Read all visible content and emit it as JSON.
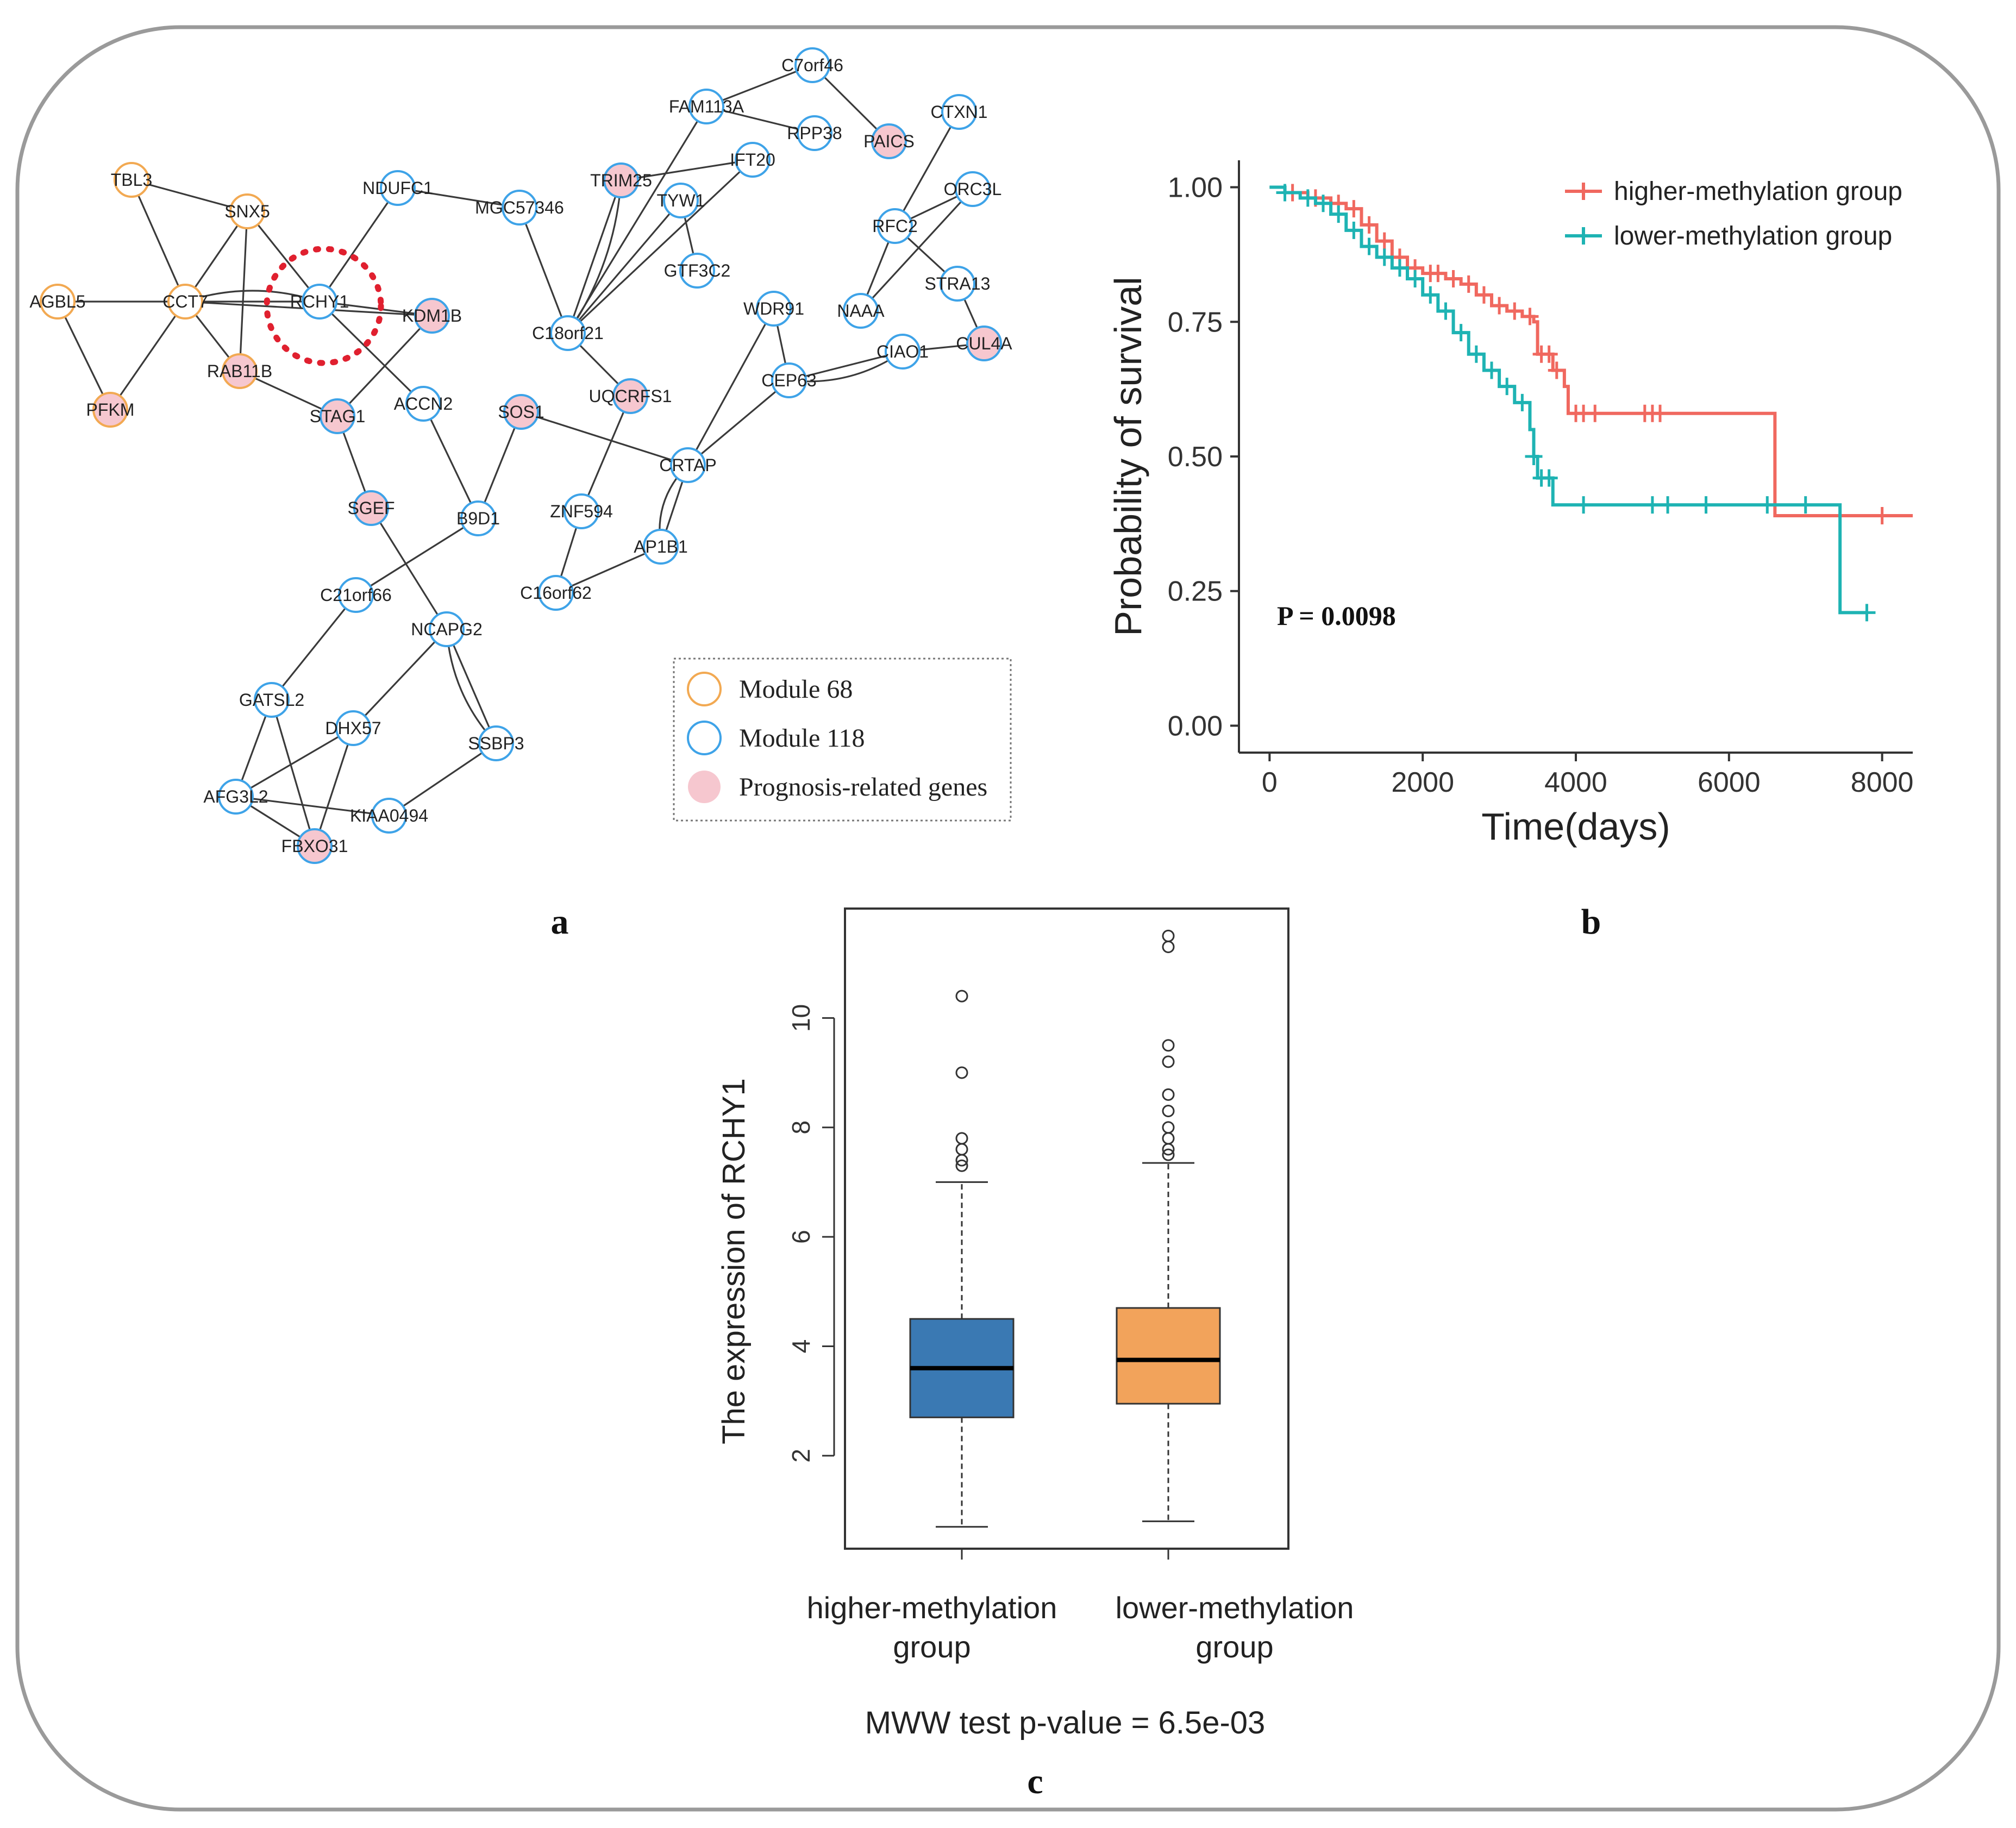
{
  "panel_labels": {
    "a": "a",
    "b": "b",
    "c": "c"
  },
  "colors": {
    "module68": "#f2a952",
    "module118": "#3ea3e8",
    "prognosis_fill": "#f6c7cf",
    "higher": "#f0685f",
    "lower": "#1eb3b3",
    "box_higher": "#3a79b3",
    "box_lower": "#f2a35b",
    "highlight": "#e0202f"
  },
  "network": {
    "highlight_node": "RCHY1",
    "legend": {
      "module68": "Module 68",
      "module118": "Module 118",
      "prognosis": "Prognosis-related genes"
    },
    "nodes": [
      {
        "id": "TBL3",
        "module": "68",
        "prognosis": false
      },
      {
        "id": "SNX5",
        "module": "68",
        "prognosis": false
      },
      {
        "id": "AGBL5",
        "module": "68",
        "prognosis": false
      },
      {
        "id": "CCT7",
        "module": "68",
        "prognosis": false
      },
      {
        "id": "RAB11B",
        "module": "68",
        "prognosis": true
      },
      {
        "id": "PFKM",
        "module": "68",
        "prognosis": true
      },
      {
        "id": "RCHY1",
        "module": "118",
        "prognosis": false
      },
      {
        "id": "NDUFC1",
        "module": "118",
        "prognosis": false
      },
      {
        "id": "KDM1B",
        "module": "118",
        "prognosis": true
      },
      {
        "id": "STAG1",
        "module": "118",
        "prognosis": true
      },
      {
        "id": "ACCN2",
        "module": "118",
        "prognosis": false
      },
      {
        "id": "SGEF",
        "module": "118",
        "prognosis": true
      },
      {
        "id": "B9D1",
        "module": "118",
        "prognosis": false
      },
      {
        "id": "SOS1",
        "module": "118",
        "prognosis": true
      },
      {
        "id": "MGC57346",
        "module": "118",
        "prognosis": false
      },
      {
        "id": "TRIM25",
        "module": "118",
        "prognosis": true
      },
      {
        "id": "TYW1",
        "module": "118",
        "prognosis": false
      },
      {
        "id": "IFT20",
        "module": "118",
        "prognosis": false
      },
      {
        "id": "FAM113A",
        "module": "118",
        "prognosis": false
      },
      {
        "id": "C7orf46",
        "module": "118",
        "prognosis": false
      },
      {
        "id": "RPP38",
        "module": "118",
        "prognosis": false
      },
      {
        "id": "PAICS",
        "module": "118",
        "prognosis": true
      },
      {
        "id": "CTXN1",
        "module": "118",
        "prognosis": false
      },
      {
        "id": "ORC3L",
        "module": "118",
        "prognosis": false
      },
      {
        "id": "RFC2",
        "module": "118",
        "prognosis": false
      },
      {
        "id": "STRA13",
        "module": "118",
        "prognosis": false
      },
      {
        "id": "NAAA",
        "module": "118",
        "prognosis": false
      },
      {
        "id": "CUL4A",
        "module": "118",
        "prognosis": true
      },
      {
        "id": "GTF3C2",
        "module": "118",
        "prognosis": false
      },
      {
        "id": "C18orf21",
        "module": "118",
        "prognosis": false
      },
      {
        "id": "UQCRFS1",
        "module": "118",
        "prognosis": true
      },
      {
        "id": "WDR91",
        "module": "118",
        "prognosis": false
      },
      {
        "id": "CEP63",
        "module": "118",
        "prognosis": false
      },
      {
        "id": "CIAO1",
        "module": "118",
        "prognosis": false
      },
      {
        "id": "CRTAP",
        "module": "118",
        "prognosis": false
      },
      {
        "id": "ZNF594",
        "module": "118",
        "prognosis": false
      },
      {
        "id": "AP1B1",
        "module": "118",
        "prognosis": false
      },
      {
        "id": "C16orf62",
        "module": "118",
        "prognosis": false
      },
      {
        "id": "C21orf66",
        "module": "118",
        "prognosis": false
      },
      {
        "id": "NCAPG2",
        "module": "118",
        "prognosis": false
      },
      {
        "id": "GATSL2",
        "module": "118",
        "prognosis": false
      },
      {
        "id": "DHX57",
        "module": "118",
        "prognosis": false
      },
      {
        "id": "SSBP3",
        "module": "118",
        "prognosis": false
      },
      {
        "id": "AFG3L2",
        "module": "118",
        "prognosis": false
      },
      {
        "id": "KIAA0494",
        "module": "118",
        "prognosis": false
      },
      {
        "id": "FBXO31",
        "module": "118",
        "prognosis": true
      }
    ],
    "edges": [
      [
        "TBL3",
        "CCT7"
      ],
      [
        "TBL3",
        "SNX5"
      ],
      [
        "SNX5",
        "CCT7"
      ],
      [
        "SNX5",
        "RAB11B"
      ],
      [
        "SNX5",
        "RCHY1"
      ],
      [
        "AGBL5",
        "CCT7"
      ],
      [
        "AGBL5",
        "PFKM"
      ],
      [
        "CCT7",
        "PFKM"
      ],
      [
        "CCT7",
        "RAB11B"
      ],
      [
        "CCT7",
        "RCHY1"
      ],
      [
        "CCT7",
        "KDM1B"
      ],
      [
        "RAB11B",
        "STAG1"
      ],
      [
        "RCHY1",
        "NDUFC1"
      ],
      [
        "RCHY1",
        "KDM1B"
      ],
      [
        "RCHY1",
        "ACCN2"
      ],
      [
        "KDM1B",
        "STAG1"
      ],
      [
        "NDUFC1",
        "MGC57346"
      ],
      [
        "MGC57346",
        "C18orf21"
      ],
      [
        "STAG1",
        "SGEF"
      ],
      [
        "SGEF",
        "NCAPG2"
      ],
      [
        "ACCN2",
        "B9D1"
      ],
      [
        "B9D1",
        "SOS1"
      ],
      [
        "B9D1",
        "C21orf66"
      ],
      [
        "SOS1",
        "CRTAP"
      ],
      [
        "C18orf21",
        "TRIM25"
      ],
      [
        "C18orf21",
        "TYW1"
      ],
      [
        "C18orf21",
        "IFT20"
      ],
      [
        "C18orf21",
        "FAM113A"
      ],
      [
        "C18orf21",
        "UQCRFS1"
      ],
      [
        "TRIM25",
        "IFT20"
      ],
      [
        "TYW1",
        "GTF3C2"
      ],
      [
        "FAM113A",
        "RPP38"
      ],
      [
        "FAM113A",
        "C7orf46"
      ],
      [
        "C7orf46",
        "PAICS"
      ],
      [
        "CTXN1",
        "RFC2"
      ],
      [
        "ORC3L",
        "RFC2"
      ],
      [
        "ORC3L",
        "NAAA"
      ],
      [
        "RFC2",
        "NAAA"
      ],
      [
        "RFC2",
        "STRA13"
      ],
      [
        "STRA13",
        "CUL4A"
      ],
      [
        "CIAO1",
        "CUL4A"
      ],
      [
        "CEP63",
        "CIAO1"
      ],
      [
        "WDR91",
        "CEP63"
      ],
      [
        "WDR91",
        "CRTAP"
      ],
      [
        "CEP63",
        "CRTAP"
      ],
      [
        "UQCRFS1",
        "ZNF594"
      ],
      [
        "ZNF594",
        "C16orf62"
      ],
      [
        "C16orf62",
        "AP1B1"
      ],
      [
        "CRTAP",
        "AP1B1"
      ],
      [
        "C21orf66",
        "GATSL2"
      ],
      [
        "NCAPG2",
        "DHX57"
      ],
      [
        "NCAPG2",
        "SSBP3"
      ],
      [
        "SSBP3",
        "KIAA0494"
      ],
      [
        "GATSL2",
        "AFG3L2"
      ],
      [
        "GATSL2",
        "FBXO31"
      ],
      [
        "DHX57",
        "AFG3L2"
      ],
      [
        "DHX57",
        "FBXO31"
      ],
      [
        "AFG3L2",
        "KIAA0494"
      ],
      [
        "AFG3L2",
        "FBXO31"
      ]
    ]
  },
  "chart_data": [
    {
      "type": "line",
      "subtype": "kaplan-meier",
      "xlabel": "Time(days)",
      "ylabel": "Probability of survival",
      "xlim": [
        -400,
        8400
      ],
      "ylim": [
        -0.05,
        1.05
      ],
      "xticks": [
        0,
        2000,
        4000,
        6000,
        8000
      ],
      "yticks": [
        0.0,
        0.25,
        0.5,
        0.75,
        1.0
      ],
      "ytick_labels": [
        "0.00",
        "0.25",
        "0.50",
        "0.75",
        "1.00"
      ],
      "annotation": "P = 0.0098",
      "legend_position": "top-right",
      "series": [
        {
          "name": "higher-methylation group",
          "color": "#f0685f",
          "steps": [
            [
              0,
              1.0
            ],
            [
              200,
              0.99
            ],
            [
              500,
              0.98
            ],
            [
              800,
              0.97
            ],
            [
              1000,
              0.96
            ],
            [
              1200,
              0.93
            ],
            [
              1400,
              0.9
            ],
            [
              1600,
              0.87
            ],
            [
              1800,
              0.85
            ],
            [
              2000,
              0.84
            ],
            [
              2300,
              0.83
            ],
            [
              2500,
              0.82
            ],
            [
              2700,
              0.8
            ],
            [
              2900,
              0.78
            ],
            [
              3100,
              0.77
            ],
            [
              3300,
              0.76
            ],
            [
              3450,
              0.75
            ],
            [
              3500,
              0.69
            ],
            [
              3700,
              0.66
            ],
            [
              3850,
              0.63
            ],
            [
              3900,
              0.58
            ],
            [
              6550,
              0.58
            ],
            [
              6600,
              0.39
            ],
            [
              8400,
              0.39
            ]
          ],
          "censor_times": [
            300,
            600,
            900,
            1100,
            1300,
            1500,
            1700,
            1900,
            2100,
            2200,
            2400,
            2600,
            2800,
            3000,
            3200,
            3400,
            3550,
            3650,
            3750,
            4000,
            4100,
            4250,
            4900,
            5000,
            5100,
            8000
          ]
        },
        {
          "name": "lower-methylation group",
          "color": "#1eb3b3",
          "steps": [
            [
              0,
              1.0
            ],
            [
              200,
              0.99
            ],
            [
              400,
              0.98
            ],
            [
              600,
              0.97
            ],
            [
              800,
              0.95
            ],
            [
              1000,
              0.92
            ],
            [
              1200,
              0.89
            ],
            [
              1400,
              0.87
            ],
            [
              1600,
              0.85
            ],
            [
              1800,
              0.83
            ],
            [
              2000,
              0.8
            ],
            [
              2200,
              0.77
            ],
            [
              2400,
              0.73
            ],
            [
              2600,
              0.69
            ],
            [
              2800,
              0.66
            ],
            [
              3000,
              0.63
            ],
            [
              3200,
              0.6
            ],
            [
              3400,
              0.55
            ],
            [
              3450,
              0.5
            ],
            [
              3500,
              0.46
            ],
            [
              3700,
              0.41
            ],
            [
              7400,
              0.41
            ],
            [
              7450,
              0.21
            ],
            [
              7800,
              0.21
            ]
          ],
          "censor_times": [
            200,
            500,
            700,
            900,
            1100,
            1300,
            1500,
            1700,
            1900,
            2100,
            2300,
            2500,
            2700,
            2900,
            3100,
            3300,
            3450,
            3550,
            3650,
            4100,
            5000,
            5200,
            5700,
            6500,
            7000,
            7800
          ]
        }
      ]
    },
    {
      "type": "box",
      "categories": [
        "higher-methylation group",
        "lower-methylation group"
      ],
      "category_lines": [
        [
          "higher-methylation",
          "group"
        ],
        [
          "lower-methylation",
          "group"
        ]
      ],
      "ylabel": "The expression of RCHY1",
      "ylim": [
        0.3,
        12.0
      ],
      "yticks": [
        2,
        4,
        6,
        8,
        10
      ],
      "footer": "MWW test p-value = 6.5e-03",
      "boxes": [
        {
          "name": "higher-methylation group",
          "color": "#3a79b3",
          "whisker_low": 0.7,
          "q1": 2.7,
          "median": 3.6,
          "q3": 4.5,
          "whisker_high": 7.0,
          "outliers": [
            7.3,
            7.4,
            7.6,
            7.8,
            9.0,
            10.4
          ]
        },
        {
          "name": "lower-methylation group",
          "color": "#f2a35b",
          "whisker_low": 0.8,
          "q1": 2.95,
          "median": 3.75,
          "q3": 4.7,
          "whisker_high": 7.35,
          "outliers": [
            7.5,
            7.6,
            7.8,
            8.0,
            8.3,
            8.6,
            9.2,
            9.5,
            11.3,
            11.5
          ]
        }
      ]
    }
  ]
}
